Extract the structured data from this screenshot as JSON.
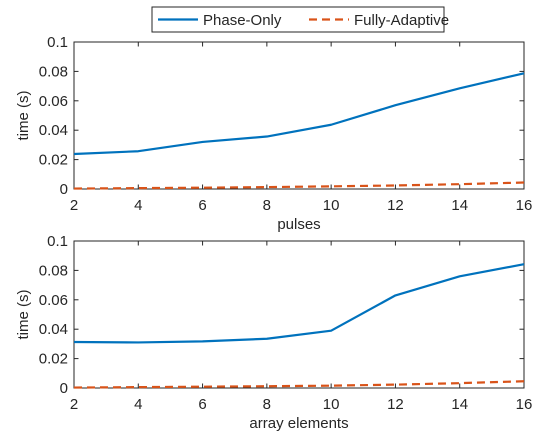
{
  "legend": {
    "items": [
      {
        "name": "Phase-Only",
        "color": "#0072BD",
        "dash": "solid"
      },
      {
        "name": "Fully-Adaptive",
        "color": "#D95319",
        "dash": "dashed"
      }
    ],
    "placement": "top-center, outside axes"
  },
  "chart_data": [
    {
      "type": "line",
      "xlabel": "pulses",
      "ylabel": "time (s)",
      "xlim": [
        2,
        16
      ],
      "ylim": [
        0,
        0.1
      ],
      "xticks": [
        2,
        4,
        6,
        8,
        10,
        12,
        14,
        16
      ],
      "xtick_labels": [
        "2",
        "4",
        "6",
        "8",
        "10",
        "12",
        "14",
        "16"
      ],
      "yticks": [
        0,
        0.02,
        0.04,
        0.06,
        0.08,
        0.1
      ],
      "ytick_labels": [
        "0",
        "0.02",
        "0.04",
        "0.06",
        "0.08",
        "0.1"
      ],
      "grid": false,
      "x": [
        2,
        4,
        6,
        8,
        10,
        12,
        14,
        16
      ],
      "series": [
        {
          "name": "Phase-Only",
          "values": [
            0.0238,
            0.0257,
            0.032,
            0.0357,
            0.0437,
            0.057,
            0.0685,
            0.0787
          ]
        },
        {
          "name": "Fully-Adaptive",
          "values": [
            0.0003,
            0.0006,
            0.0009,
            0.0013,
            0.0018,
            0.0024,
            0.0033,
            0.0044
          ]
        }
      ]
    },
    {
      "type": "line",
      "xlabel": "array elements",
      "ylabel": "time (s)",
      "xlim": [
        2,
        16
      ],
      "ylim": [
        0,
        0.1
      ],
      "xticks": [
        2,
        4,
        6,
        8,
        10,
        12,
        14,
        16
      ],
      "xtick_labels": [
        "2",
        "4",
        "6",
        "8",
        "10",
        "12",
        "14",
        "16"
      ],
      "yticks": [
        0,
        0.02,
        0.04,
        0.06,
        0.08,
        0.1
      ],
      "ytick_labels": [
        "0",
        "0.02",
        "0.04",
        "0.06",
        "0.08",
        "0.1"
      ],
      "grid": false,
      "x": [
        2,
        4,
        6,
        8,
        10,
        12,
        14,
        16
      ],
      "series": [
        {
          "name": "Phase-Only",
          "values": [
            0.0313,
            0.031,
            0.0317,
            0.0335,
            0.039,
            0.063,
            0.076,
            0.0842
          ]
        },
        {
          "name": "Fully-Adaptive",
          "values": [
            0.0003,
            0.0006,
            0.0009,
            0.0012,
            0.0016,
            0.0023,
            0.0033,
            0.0046
          ]
        }
      ]
    }
  ]
}
